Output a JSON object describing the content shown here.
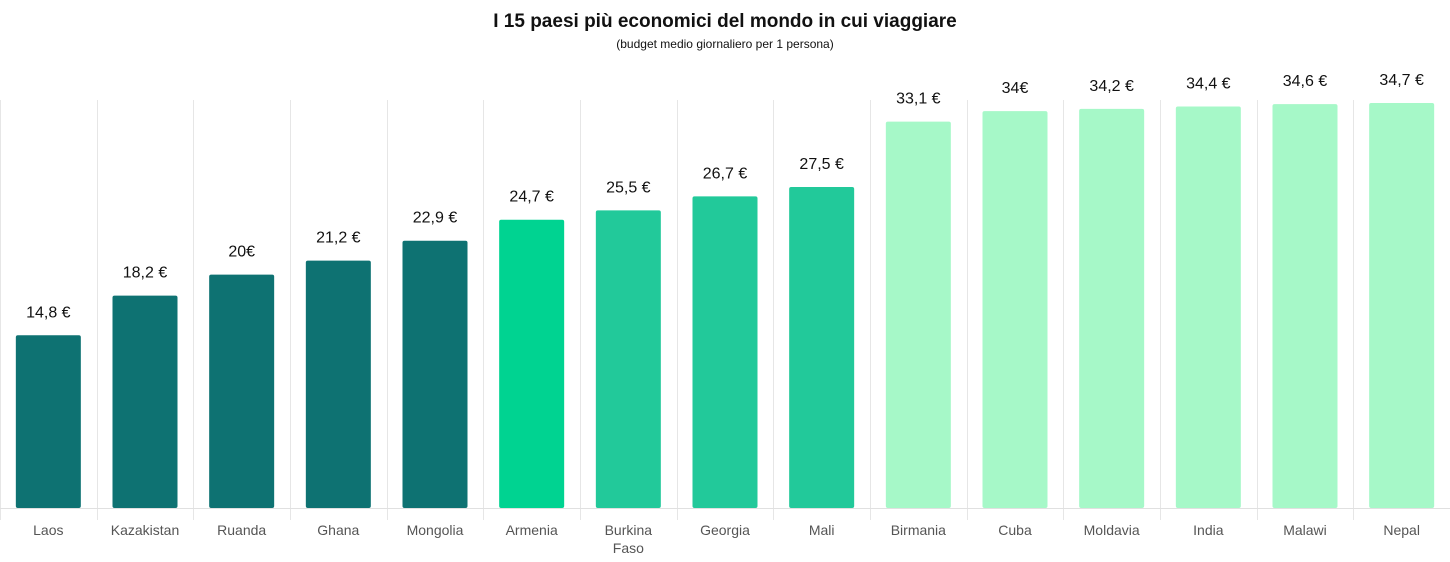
{
  "title": "I 15 paesi più economici del mondo in cui viaggiare",
  "subtitle": "(budget medio giornaliero per 1 persona)",
  "chart_data": {
    "type": "bar",
    "title": "I 15 paesi più economici del mondo in cui viaggiare",
    "subtitle": "(budget medio giornaliero per 1 persona)",
    "categories": [
      [
        "Laos"
      ],
      [
        "Kazakistan"
      ],
      [
        "Ruanda"
      ],
      [
        "Ghana"
      ],
      [
        "Mongolia"
      ],
      [
        "Armenia"
      ],
      [
        "Burkina",
        "Faso"
      ],
      [
        "Georgia"
      ],
      [
        "Mali"
      ],
      [
        "Birmania"
      ],
      [
        "Cuba"
      ],
      [
        "Moldavia"
      ],
      [
        "India"
      ],
      [
        "Malawi"
      ],
      [
        "Nepal"
      ]
    ],
    "values": [
      14.8,
      18.2,
      20,
      21.2,
      22.9,
      24.7,
      25.5,
      26.7,
      27.5,
      33.1,
      34,
      34.2,
      34.4,
      34.6,
      34.7
    ],
    "data_labels": [
      "14,8 €",
      "18,2 €",
      "20€",
      "21,2 €",
      "22,9 €",
      "24,7 €",
      "25,5 €",
      "26,7 €",
      "27,5 €",
      "33,1 €",
      "34€",
      "34,2 €",
      "34,4 €",
      "34,6 €",
      "34,7 €"
    ],
    "bar_colors": [
      "#0e7272",
      "#0e7272",
      "#0e7272",
      "#0e7272",
      "#0e7272",
      "#00d391",
      "#22c99a",
      "#22c99a",
      "#22c99a",
      "#a6f8c8",
      "#a6f8c8",
      "#a6f8c8",
      "#a6f8c8",
      "#a6f8c8",
      "#a6f8c8"
    ],
    "ylim": [
      0,
      35
    ],
    "grid": "vertical separators",
    "legend": "none"
  }
}
